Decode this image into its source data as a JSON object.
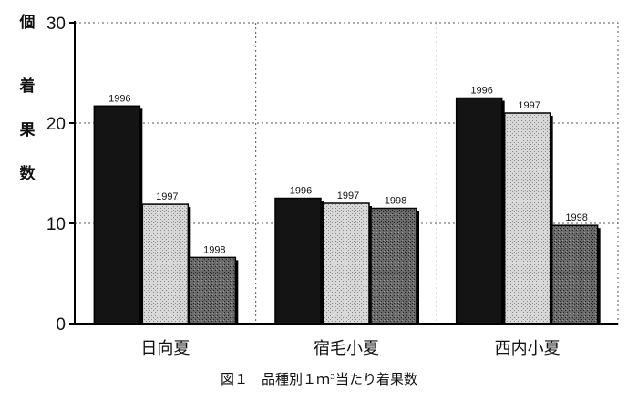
{
  "chart_data": {
    "type": "bar",
    "title": "",
    "ylabel": "個着果数",
    "xlabel": "",
    "ylim": [
      0,
      30
    ],
    "yticks": [
      "0",
      "10",
      "20",
      "30"
    ],
    "categories": [
      "日向夏",
      "宿毛小夏",
      "西内小夏"
    ],
    "series": [
      {
        "name": "1996",
        "values": [
          21.7,
          12.5,
          22.5
        ],
        "color": "#1a1a1a",
        "pattern": "solid"
      },
      {
        "name": "1997",
        "values": [
          11.9,
          12.0,
          21.0
        ],
        "color": "#cfcfcf",
        "pattern": "light-dots"
      },
      {
        "name": "1998",
        "values": [
          6.6,
          11.5,
          9.8
        ],
        "color": "#555555",
        "pattern": "dark-dots"
      }
    ],
    "grid": "dashed",
    "legend": "data-labels"
  },
  "caption": "図１　品種別１ｍ³当たり着果数"
}
